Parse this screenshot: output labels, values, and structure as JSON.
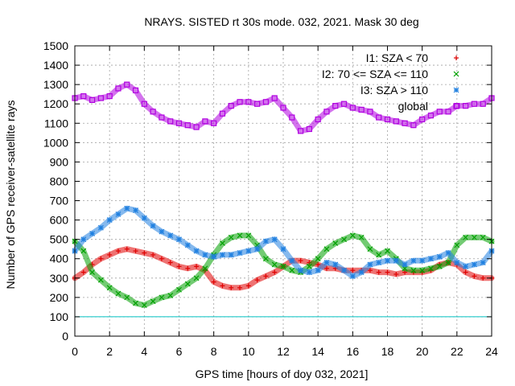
{
  "chart_data": {
    "type": "scatter",
    "title": "NRAYS. SISTED rt 30s mode. 032, 2021. Mask 30 deg",
    "xlabel": "GPS time [hours of doy 032, 2021]",
    "ylabel": "Number of GPS receiver-satellite rays",
    "xlim": [
      0,
      24
    ],
    "ylim": [
      0,
      1500
    ],
    "xticks": [
      "0",
      "2",
      "4",
      "6",
      "8",
      "10",
      "12",
      "14",
      "16",
      "18",
      "20",
      "22",
      "24"
    ],
    "yticks": [
      "0",
      "100",
      "200",
      "300",
      "400",
      "500",
      "600",
      "700",
      "800",
      "900",
      "1000",
      "1100",
      "1200",
      "1300",
      "1400",
      "1500"
    ],
    "grid": true,
    "legend_position": "top-right",
    "reference_line": {
      "y": 100,
      "color": "#00c0c0"
    },
    "series": [
      {
        "name": "I1: SZA < 70",
        "marker": "+",
        "color": "#e00000",
        "x": [
          0,
          0.5,
          1,
          1.5,
          2,
          2.5,
          3,
          3.5,
          4,
          4.5,
          5,
          5.5,
          6,
          6.5,
          7,
          7.5,
          8,
          8.5,
          9,
          9.5,
          10,
          10.5,
          11,
          11.5,
          12,
          12.5,
          13,
          13.5,
          14,
          14.5,
          15,
          15.5,
          16,
          16.5,
          17,
          17.5,
          18,
          18.5,
          19,
          19.5,
          20,
          20.5,
          21,
          21.5,
          22,
          22.5,
          23,
          23.5,
          24
        ],
        "values": [
          300,
          330,
          370,
          400,
          420,
          440,
          450,
          440,
          430,
          420,
          400,
          380,
          360,
          350,
          360,
          340,
          280,
          260,
          250,
          250,
          260,
          290,
          310,
          330,
          360,
          390,
          390,
          380,
          370,
          350,
          350,
          340,
          340,
          340,
          340,
          330,
          330,
          320,
          330,
          330,
          330,
          340,
          370,
          380,
          370,
          330,
          310,
          300,
          300
        ]
      },
      {
        "name": "I2: 70 <= SZA <= 110",
        "marker": "x",
        "color": "#00a000",
        "x": [
          0,
          0.5,
          1,
          1.5,
          2,
          2.5,
          3,
          3.5,
          4,
          4.5,
          5,
          5.5,
          6,
          6.5,
          7,
          7.5,
          8,
          8.5,
          9,
          9.5,
          10,
          10.5,
          11,
          11.5,
          12,
          12.5,
          13,
          13.5,
          14,
          14.5,
          15,
          15.5,
          16,
          16.5,
          17,
          17.5,
          18,
          18.5,
          19,
          19.5,
          20,
          20.5,
          21,
          21.5,
          22,
          22.5,
          23,
          23.5,
          24
        ],
        "values": [
          490,
          440,
          330,
          290,
          250,
          220,
          200,
          170,
          160,
          180,
          200,
          210,
          240,
          270,
          300,
          350,
          420,
          480,
          510,
          520,
          520,
          470,
          400,
          370,
          360,
          340,
          330,
          360,
          400,
          450,
          480,
          500,
          520,
          510,
          450,
          420,
          440,
          400,
          350,
          340,
          340,
          350,
          360,
          380,
          470,
          510,
          510,
          510,
          490
        ]
      },
      {
        "name": "I3: SZA > 110",
        "marker": "*",
        "color": "#2080e0",
        "x": [
          0,
          0.5,
          1,
          1.5,
          2,
          2.5,
          3,
          3.5,
          4,
          4.5,
          5,
          5.5,
          6,
          6.5,
          7,
          7.5,
          8,
          8.5,
          9,
          9.5,
          10,
          10.5,
          11,
          11.5,
          12,
          12.5,
          13,
          13.5,
          14,
          14.5,
          15,
          15.5,
          16,
          16.5,
          17,
          17.5,
          18,
          18.5,
          19,
          19.5,
          20,
          20.5,
          21,
          21.5,
          22,
          22.5,
          23,
          23.5,
          24
        ],
        "values": [
          440,
          500,
          530,
          560,
          600,
          630,
          660,
          650,
          610,
          570,
          540,
          520,
          500,
          470,
          440,
          420,
          410,
          420,
          420,
          430,
          440,
          450,
          490,
          500,
          450,
          390,
          340,
          330,
          340,
          380,
          370,
          340,
          310,
          330,
          370,
          380,
          390,
          390,
          370,
          390,
          390,
          400,
          410,
          430,
          380,
          360,
          370,
          380,
          440
        ]
      },
      {
        "name": "global",
        "marker": "square",
        "color": "#b000e0",
        "x": [
          0,
          0.5,
          1,
          1.5,
          2,
          2.5,
          3,
          3.5,
          4,
          4.5,
          5,
          5.5,
          6,
          6.5,
          7,
          7.5,
          8,
          8.5,
          9,
          9.5,
          10,
          10.5,
          11,
          11.5,
          12,
          12.5,
          13,
          13.5,
          14,
          14.5,
          15,
          15.5,
          16,
          16.5,
          17,
          17.5,
          18,
          18.5,
          19,
          19.5,
          20,
          20.5,
          21,
          21.5,
          22,
          22.5,
          23,
          23.5,
          24
        ],
        "values": [
          1230,
          1240,
          1220,
          1230,
          1240,
          1280,
          1300,
          1270,
          1200,
          1160,
          1130,
          1110,
          1100,
          1090,
          1080,
          1110,
          1100,
          1150,
          1190,
          1210,
          1210,
          1200,
          1210,
          1230,
          1180,
          1130,
          1060,
          1070,
          1120,
          1160,
          1190,
          1200,
          1180,
          1170,
          1160,
          1130,
          1120,
          1110,
          1100,
          1090,
          1120,
          1140,
          1160,
          1160,
          1190,
          1190,
          1200,
          1200,
          1230
        ]
      }
    ]
  }
}
